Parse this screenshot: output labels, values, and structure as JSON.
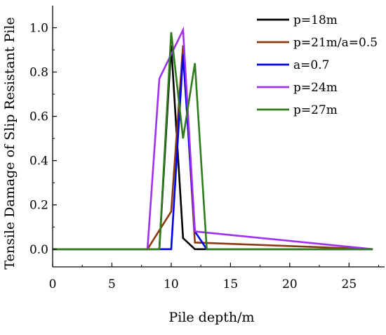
{
  "chart_data": {
    "type": "line",
    "title": "",
    "xlabel": "Pile depth/m",
    "ylabel": "Tensile Damage of Slip Resistant Pile",
    "xlim": [
      0,
      28
    ],
    "ylim": [
      -0.08,
      1.1
    ],
    "x_ticks": [
      0,
      5,
      10,
      15,
      20,
      25
    ],
    "y_ticks": [
      0.0,
      0.2,
      0.4,
      0.6,
      0.8,
      1.0
    ],
    "x_tick_labels": [
      "0",
      "5",
      "10",
      "15",
      "20",
      "25"
    ],
    "y_tick_labels": [
      "0.0",
      "0.2",
      "0.4",
      "0.6",
      "0.8",
      "1.0"
    ],
    "grid": false,
    "legend_position": "top-right",
    "series": [
      {
        "name": "p=18m",
        "color": "#000000",
        "x": [
          0,
          9,
          10,
          11,
          12,
          27
        ],
        "y": [
          0,
          0,
          0.92,
          0.05,
          0,
          0
        ]
      },
      {
        "name": "p=21m/a=0.5",
        "color": "#8B3A0F",
        "x": [
          0,
          8,
          10,
          11,
          12,
          27
        ],
        "y": [
          0,
          0,
          0.17,
          0.92,
          0.03,
          0
        ]
      },
      {
        "name": "a=0.7",
        "color": "#0000EE",
        "x": [
          0,
          9,
          10,
          11,
          12,
          13,
          27
        ],
        "y": [
          0,
          0,
          0,
          0.88,
          0.08,
          0,
          0
        ]
      },
      {
        "name": "p=24m",
        "color": "#A030F0",
        "x": [
          0,
          8,
          9,
          11,
          12,
          27
        ],
        "y": [
          0,
          0,
          0.77,
          0.99,
          0.08,
          0
        ]
      },
      {
        "name": "p=27m",
        "color": "#2E7D1A",
        "x": [
          0,
          9,
          10,
          11,
          12,
          13,
          27
        ],
        "y": [
          0,
          0,
          0.98,
          0.5,
          0.84,
          0,
          0
        ]
      }
    ]
  }
}
